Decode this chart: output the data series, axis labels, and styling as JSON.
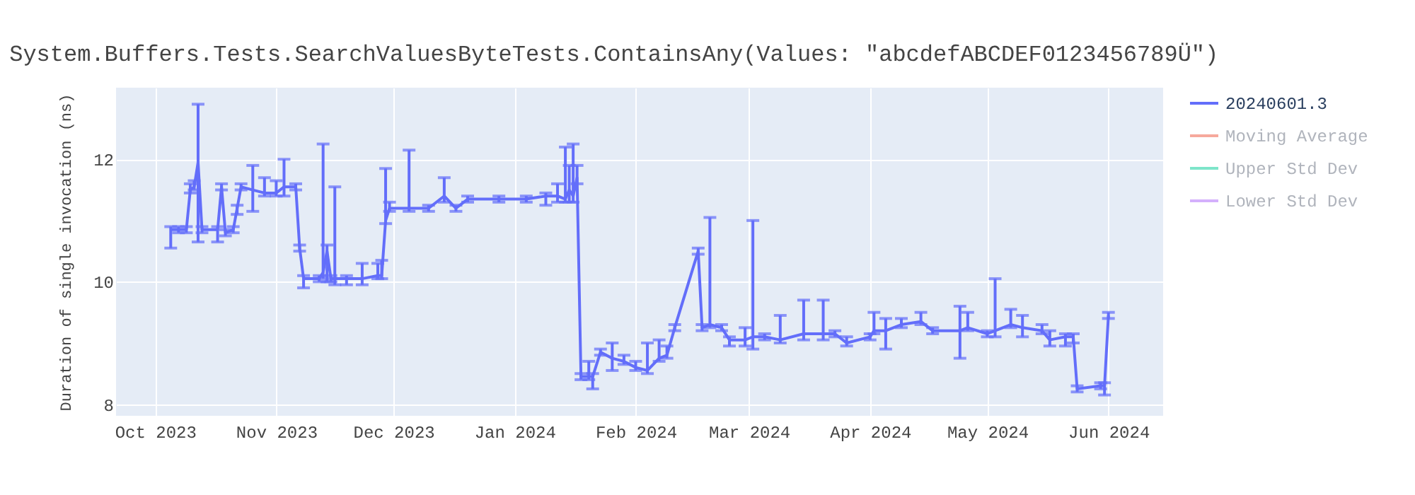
{
  "chart_data": {
    "type": "line",
    "title": "System.Buffers.Tests.SearchValuesByteTests.ContainsAny(Values: \"abcdefABCDEF0123456789Ü\")",
    "ylabel": "Duration of single invocation (ns)",
    "xlim": [
      "2023-09-21",
      "2024-06-15"
    ],
    "xticks": [
      {
        "value": "2023-10-01",
        "label": "Oct 2023"
      },
      {
        "value": "2023-11-01",
        "label": "Nov 2023"
      },
      {
        "value": "2023-12-01",
        "label": "Dec 2023"
      },
      {
        "value": "2024-01-01",
        "label": "Jan 2024"
      },
      {
        "value": "2024-02-01",
        "label": "Feb 2024"
      },
      {
        "value": "2024-03-01",
        "label": "Mar 2024"
      },
      {
        "value": "2024-04-01",
        "label": "Apr 2024"
      },
      {
        "value": "2024-05-01",
        "label": "May 2024"
      },
      {
        "value": "2024-06-01",
        "label": "Jun 2024"
      }
    ],
    "ylim": [
      7.81,
      13.17
    ],
    "yticks": [
      8,
      10,
      12
    ],
    "grid": true,
    "legend": "top right",
    "x": [
      "2023-10-05",
      "2023-10-07",
      "2023-10-09",
      "2023-10-10",
      "2023-10-11",
      "2023-10-12",
      "2023-10-13",
      "2023-10-17",
      "2023-10-18",
      "2023-10-19",
      "2023-10-21",
      "2023-10-22",
      "2023-10-23",
      "2023-10-26",
      "2023-10-29",
      "2023-11-01",
      "2023-11-03",
      "2023-11-06",
      "2023-11-07",
      "2023-11-08",
      "2023-11-12",
      "2023-11-13",
      "2023-11-14",
      "2023-11-15",
      "2023-11-16",
      "2023-11-19",
      "2023-11-23",
      "2023-11-27",
      "2023-11-28",
      "2023-11-29",
      "2023-11-30",
      "2023-12-05",
      "2023-12-10",
      "2023-12-14",
      "2023-12-17",
      "2023-12-20",
      "2023-12-28",
      "2024-01-04",
      "2024-01-09",
      "2024-01-12",
      "2024-01-14",
      "2024-01-15",
      "2024-01-16",
      "2024-01-17",
      "2024-01-18",
      "2024-01-20",
      "2024-01-21",
      "2024-01-23",
      "2024-01-26",
      "2024-01-29",
      "2024-02-01",
      "2024-02-04",
      "2024-02-07",
      "2024-02-09",
      "2024-02-11",
      "2024-02-17",
      "2024-02-18",
      "2024-02-20",
      "2024-02-23",
      "2024-02-25",
      "2024-02-29",
      "2024-03-02",
      "2024-03-05",
      "2024-03-09",
      "2024-03-15",
      "2024-03-20",
      "2024-03-23",
      "2024-03-26",
      "2024-04-01",
      "2024-04-02",
      "2024-04-05",
      "2024-04-09",
      "2024-04-14",
      "2024-04-17",
      "2024-04-24",
      "2024-04-26",
      "2024-05-01",
      "2024-05-03",
      "2024-05-07",
      "2024-05-10",
      "2024-05-15",
      "2024-05-17",
      "2024-05-21",
      "2024-05-23",
      "2024-05-24",
      "2024-05-30",
      "2024-05-31",
      "2024-06-01"
    ],
    "series": [
      {
        "name": "20240601.3",
        "color": "#636efa",
        "values": [
          10.85,
          10.85,
          10.85,
          11.5,
          11.55,
          11.95,
          10.85,
          10.85,
          11.55,
          10.8,
          10.85,
          11.2,
          11.55,
          11.5,
          11.45,
          11.45,
          11.55,
          11.55,
          10.55,
          10.05,
          10.05,
          10.15,
          10.5,
          10.05,
          10.05,
          10.05,
          10.05,
          10.1,
          10.1,
          11.0,
          11.2,
          11.2,
          11.2,
          11.4,
          11.2,
          11.35,
          11.35,
          11.35,
          11.4,
          11.4,
          11.35,
          11.5,
          11.4,
          11.7,
          8.45,
          8.45,
          8.45,
          8.85,
          8.75,
          8.7,
          8.6,
          8.55,
          8.75,
          8.8,
          9.25,
          10.5,
          9.25,
          9.3,
          9.25,
          9.05,
          9.05,
          9.1,
          9.1,
          9.05,
          9.15,
          9.15,
          9.15,
          9.0,
          9.1,
          9.2,
          9.2,
          9.3,
          9.35,
          9.2,
          9.2,
          9.25,
          9.15,
          9.2,
          9.3,
          9.25,
          9.2,
          9.05,
          9.1,
          9.1,
          8.25,
          8.3,
          8.3,
          9.45
        ],
        "errors": [
          [
            10.55,
            10.9
          ],
          [
            10.8,
            10.9
          ],
          [
            10.8,
            10.9
          ],
          [
            11.45,
            11.6
          ],
          [
            11.5,
            11.65
          ],
          [
            10.65,
            12.9
          ],
          [
            10.8,
            10.9
          ],
          [
            10.65,
            10.9
          ],
          [
            11.5,
            11.6
          ],
          [
            10.75,
            10.85
          ],
          [
            10.8,
            10.9
          ],
          [
            11.1,
            11.25
          ],
          [
            11.5,
            11.6
          ],
          [
            11.15,
            11.9
          ],
          [
            11.4,
            11.7
          ],
          [
            11.4,
            11.65
          ],
          [
            11.4,
            12.0
          ],
          [
            11.5,
            11.6
          ],
          [
            10.5,
            10.6
          ],
          [
            9.9,
            10.1
          ],
          [
            10.0,
            10.1
          ],
          [
            10.05,
            12.25
          ],
          [
            10.0,
            10.6
          ],
          [
            10.0,
            10.1
          ],
          [
            9.95,
            11.55
          ],
          [
            9.95,
            10.1
          ],
          [
            9.95,
            10.3
          ],
          [
            10.05,
            10.3
          ],
          [
            10.05,
            10.35
          ],
          [
            10.95,
            11.85
          ],
          [
            11.15,
            11.3
          ],
          [
            11.15,
            12.15
          ],
          [
            11.15,
            11.25
          ],
          [
            11.3,
            11.7
          ],
          [
            11.15,
            11.25
          ],
          [
            11.3,
            11.4
          ],
          [
            11.3,
            11.4
          ],
          [
            11.3,
            11.4
          ],
          [
            11.25,
            11.45
          ],
          [
            11.3,
            11.6
          ],
          [
            11.3,
            12.2
          ],
          [
            11.3,
            11.9
          ],
          [
            11.3,
            12.25
          ],
          [
            11.6,
            11.9
          ],
          [
            8.4,
            8.5
          ],
          [
            8.4,
            8.7
          ],
          [
            8.25,
            8.5
          ],
          [
            8.8,
            8.9
          ],
          [
            8.55,
            9.0
          ],
          [
            8.65,
            8.8
          ],
          [
            8.55,
            8.7
          ],
          [
            8.5,
            9.0
          ],
          [
            8.7,
            9.05
          ],
          [
            8.75,
            8.95
          ],
          [
            9.2,
            9.3
          ],
          [
            10.45,
            10.55
          ],
          [
            9.2,
            9.3
          ],
          [
            9.25,
            11.05
          ],
          [
            9.2,
            9.3
          ],
          [
            8.95,
            9.1
          ],
          [
            8.95,
            9.25
          ],
          [
            8.9,
            11.0
          ],
          [
            9.05,
            9.15
          ],
          [
            9.0,
            9.45
          ],
          [
            9.05,
            9.7
          ],
          [
            9.05,
            9.7
          ],
          [
            9.1,
            9.2
          ],
          [
            8.95,
            9.1
          ],
          [
            9.05,
            9.15
          ],
          [
            9.15,
            9.5
          ],
          [
            8.9,
            9.4
          ],
          [
            9.25,
            9.4
          ],
          [
            9.3,
            9.5
          ],
          [
            9.15,
            9.25
          ],
          [
            8.75,
            9.6
          ],
          [
            9.2,
            9.5
          ],
          [
            9.1,
            9.2
          ],
          [
            9.1,
            10.05
          ],
          [
            9.25,
            9.55
          ],
          [
            9.1,
            9.45
          ],
          [
            9.15,
            9.3
          ],
          [
            8.95,
            9.2
          ],
          [
            8.95,
            9.15
          ],
          [
            9.0,
            9.15
          ],
          [
            8.2,
            8.3
          ],
          [
            8.25,
            8.35
          ],
          [
            8.15,
            8.35
          ],
          [
            9.4,
            9.5
          ]
        ]
      },
      {
        "name": "Moving Average",
        "color": "#ef553b",
        "values": [
          null,
          null,
          null,
          null,
          null,
          null,
          null,
          null,
          null,
          null,
          null,
          null,
          null,
          null,
          null,
          null,
          null,
          null,
          null,
          null,
          null,
          null,
          null,
          null,
          null,
          null,
          null,
          null,
          null,
          null,
          null,
          null,
          null,
          null,
          null,
          null,
          null,
          null,
          null,
          null,
          null,
          null,
          null,
          null,
          null,
          null,
          null,
          null,
          null,
          null,
          null,
          null,
          null,
          null,
          null,
          null,
          null,
          null,
          null,
          null,
          null,
          null,
          null,
          null,
          null,
          null,
          null,
          null,
          null,
          null,
          null,
          null,
          null,
          null,
          null,
          null,
          null,
          null,
          null,
          null,
          null,
          null,
          null,
          null,
          null,
          null,
          null,
          null
        ]
      },
      {
        "name": "Upper Std Dev",
        "color": "#00cc96",
        "values": [
          null,
          null,
          null,
          null,
          null,
          null,
          null,
          null,
          null,
          null,
          null,
          null,
          null,
          null,
          null,
          null,
          null,
          null,
          null,
          null,
          null,
          null,
          null,
          null,
          null,
          null,
          null,
          null,
          null,
          null,
          null,
          null,
          null,
          null,
          null,
          null,
          null,
          null,
          null,
          null,
          null,
          null,
          null,
          null,
          null,
          null,
          null,
          null,
          null,
          null,
          null,
          null,
          null,
          null,
          null,
          null,
          null,
          null,
          null,
          null,
          null,
          null,
          null,
          null,
          null,
          null,
          null,
          null,
          null,
          null,
          null,
          null,
          null,
          null,
          null,
          null,
          null,
          null,
          null,
          null,
          null,
          null,
          null,
          null,
          null,
          null,
          null,
          null
        ]
      },
      {
        "name": "Lower Std Dev",
        "color": "#ab63fa",
        "values": [
          null,
          null,
          null,
          null,
          null,
          null,
          null,
          null,
          null,
          null,
          null,
          null,
          null,
          null,
          null,
          null,
          null,
          null,
          null,
          null,
          null,
          null,
          null,
          null,
          null,
          null,
          null,
          null,
          null,
          null,
          null,
          null,
          null,
          null,
          null,
          null,
          null,
          null,
          null,
          null,
          null,
          null,
          null,
          null,
          null,
          null,
          null,
          null,
          null,
          null,
          null,
          null,
          null,
          null,
          null,
          null,
          null,
          null,
          null,
          null,
          null,
          null,
          null,
          null,
          null,
          null,
          null,
          null,
          null,
          null,
          null,
          null,
          null,
          null,
          null,
          null,
          null,
          null,
          null,
          null,
          null,
          null,
          null,
          null,
          null,
          null,
          null,
          null
        ]
      }
    ]
  }
}
